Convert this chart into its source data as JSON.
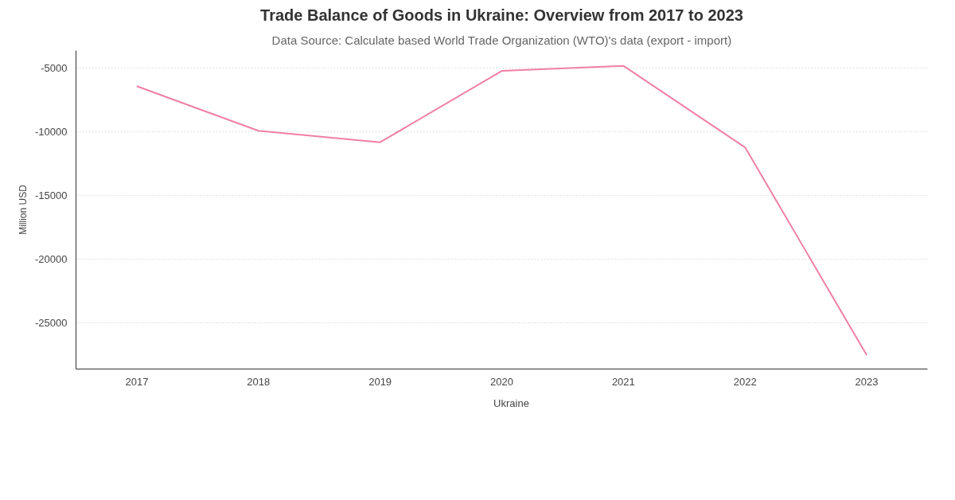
{
  "chart_data": {
    "type": "line",
    "title": "Trade Balance of Goods in Ukraine: Overview from 2017 to 2023",
    "subtitle": "Data Source: Calculate based World Trade Organization (WTO)'s data (export - import)",
    "ylabel": "Million USD",
    "categories": [
      "2017",
      "2018",
      "2019",
      "2020",
      "2021",
      "2022",
      "2023"
    ],
    "series": [
      {
        "name": "Ukraine",
        "color": "#f07fa8",
        "values": [
          -6400,
          -9900,
          -10800,
          -5200,
          -4800,
          -11200,
          -27500
        ]
      }
    ],
    "ylim": [
      -28600,
      -3600
    ],
    "yticks": [
      -25000,
      -20000,
      -15000,
      -10000,
      -5000
    ],
    "grid": "y",
    "legend": "bottom",
    "marker": "none",
    "line_style": "solid"
  }
}
